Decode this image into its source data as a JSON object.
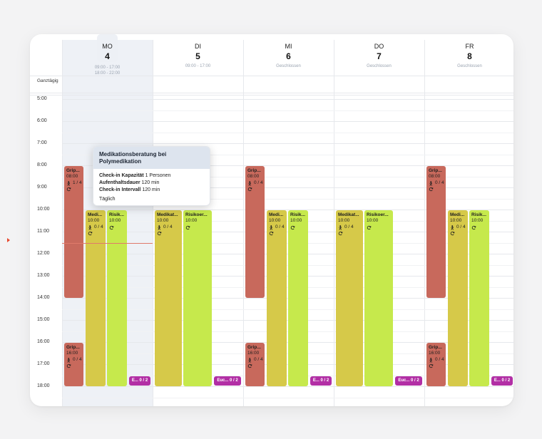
{
  "colors": {
    "red": "#c8695c",
    "mustard": "#d6c949",
    "lime": "#c6e94c",
    "purple": "#b22fa5",
    "today_highlight": "#eef1f6",
    "now_indicator": "#e7482e"
  },
  "all_day_label": "Ganztägig",
  "time_labels": [
    "5:00",
    "6:00",
    "7:00",
    "8:00",
    "9:00",
    "10:00",
    "11:00",
    "12:00",
    "13:00",
    "14:00",
    "15:00",
    "16:00",
    "17:00",
    "18:00"
  ],
  "days": [
    {
      "dow": "MO",
      "num": "4",
      "hours": [
        "09:00 - 17:00",
        "18:00 - 22:00"
      ],
      "today": true
    },
    {
      "dow": "DI",
      "num": "5",
      "hours": [
        "09:00 - 17:00"
      ],
      "today": false
    },
    {
      "dow": "MI",
      "num": "6",
      "hours": [
        "Geschlossen"
      ],
      "today": false
    },
    {
      "dow": "DO",
      "num": "7",
      "hours": [
        "Geschlossen"
      ],
      "today": false
    },
    {
      "dow": "FR",
      "num": "8",
      "hours": [
        "Geschlossen"
      ],
      "today": false
    }
  ],
  "events": [
    {
      "day": 0,
      "title": "Grip...",
      "start_hour": 8.0,
      "end_hour": 14.0,
      "lane": 0,
      "color": "red",
      "start_label": "08:00",
      "capacity": "1 / 4",
      "recurring": true
    },
    {
      "day": 0,
      "title": "Grip...",
      "start_hour": 16.0,
      "end_hour": 18.0,
      "lane": 0,
      "color": "red",
      "start_label": "16:00",
      "capacity": "0 / 4",
      "recurring": true
    },
    {
      "day": 0,
      "title": "Medi...",
      "start_hour": 10.0,
      "end_hour": 18.0,
      "lane": 1,
      "color": "mustard",
      "start_label": "10:00",
      "capacity": "0 / 4",
      "recurring": true
    },
    {
      "day": 0,
      "title": "Risik...",
      "start_hour": 10.0,
      "end_hour": 18.0,
      "lane": 2,
      "color": "lime",
      "start_label": "10:00",
      "recurring": true
    },
    {
      "day": 0,
      "title": "E...",
      "start_hour": 17.5,
      "end_hour": 18.0,
      "lane": 3,
      "color": "purple",
      "capacity": "0 / 2"
    },
    {
      "day": 1,
      "title": "Medikat...",
      "start_hour": 10.0,
      "end_hour": 18.0,
      "lane": 0,
      "color": "mustard",
      "start_label": "10:00",
      "capacity": "0 / 4",
      "recurring": true
    },
    {
      "day": 1,
      "title": "Risikoer...",
      "start_hour": 10.0,
      "end_hour": 18.0,
      "lane": 1,
      "color": "lime",
      "start_label": "10:00",
      "recurring": true
    },
    {
      "day": 1,
      "title": "Euc...",
      "start_hour": 17.5,
      "end_hour": 18.0,
      "lane": 2,
      "color": "purple",
      "capacity": "0 / 2"
    },
    {
      "day": 2,
      "title": "Grip...",
      "start_hour": 8.0,
      "end_hour": 14.0,
      "lane": 0,
      "color": "red",
      "start_label": "08:00",
      "capacity": "0 / 4",
      "recurring": true
    },
    {
      "day": 2,
      "title": "Grip...",
      "start_hour": 16.0,
      "end_hour": 18.0,
      "lane": 0,
      "color": "red",
      "start_label": "16:00",
      "capacity": "0 / 4",
      "recurring": true
    },
    {
      "day": 2,
      "title": "Medi...",
      "start_hour": 10.0,
      "end_hour": 18.0,
      "lane": 1,
      "color": "mustard",
      "start_label": "10:00",
      "capacity": "0 / 4",
      "recurring": true
    },
    {
      "day": 2,
      "title": "Risik...",
      "start_hour": 10.0,
      "end_hour": 18.0,
      "lane": 2,
      "color": "lime",
      "start_label": "10:00",
      "recurring": true
    },
    {
      "day": 2,
      "title": "E...",
      "start_hour": 17.5,
      "end_hour": 18.0,
      "lane": 3,
      "color": "purple",
      "capacity": "0 / 2"
    },
    {
      "day": 3,
      "title": "Medikat...",
      "start_hour": 10.0,
      "end_hour": 18.0,
      "lane": 0,
      "color": "mustard",
      "start_label": "10:00",
      "capacity": "0 / 4",
      "recurring": true
    },
    {
      "day": 3,
      "title": "Risikoer...",
      "start_hour": 10.0,
      "end_hour": 18.0,
      "lane": 1,
      "color": "lime",
      "start_label": "10:00",
      "recurring": true
    },
    {
      "day": 3,
      "title": "Euc...",
      "start_hour": 17.5,
      "end_hour": 18.0,
      "lane": 2,
      "color": "purple",
      "capacity": "0 / 2"
    },
    {
      "day": 4,
      "title": "Grip...",
      "start_hour": 8.0,
      "end_hour": 14.0,
      "lane": 0,
      "color": "red",
      "start_label": "08:00",
      "capacity": "0 / 4",
      "recurring": true
    },
    {
      "day": 4,
      "title": "Grip...",
      "start_hour": 16.0,
      "end_hour": 18.0,
      "lane": 0,
      "color": "red",
      "start_label": "16:00",
      "capacity": "0 / 4",
      "recurring": true
    },
    {
      "day": 4,
      "title": "Medi...",
      "start_hour": 10.0,
      "end_hour": 18.0,
      "lane": 1,
      "color": "mustard",
      "start_label": "10:00",
      "capacity": "0 / 4",
      "recurring": true
    },
    {
      "day": 4,
      "title": "Risik...",
      "start_hour": 10.0,
      "end_hour": 18.0,
      "lane": 2,
      "color": "lime",
      "start_label": "10:00",
      "recurring": true
    },
    {
      "day": 4,
      "title": "E...",
      "start_hour": 17.5,
      "end_hour": 18.0,
      "lane": 3,
      "color": "purple",
      "capacity": "0 / 2"
    }
  ],
  "now_hour": 11.5,
  "popover": {
    "title": "Medikationsberatung bei Polymedikation",
    "rows": [
      {
        "label": "Check-in Kapazität",
        "value": "1 Personen"
      },
      {
        "label": "Aufenthaltsdauer",
        "value": "120 min"
      },
      {
        "label": "Check-in Intervall",
        "value": "120 min"
      }
    ],
    "footer": "Täglich"
  },
  "icons": {
    "capacity": "person-walking-icon",
    "recurring": "recurring-icon"
  }
}
